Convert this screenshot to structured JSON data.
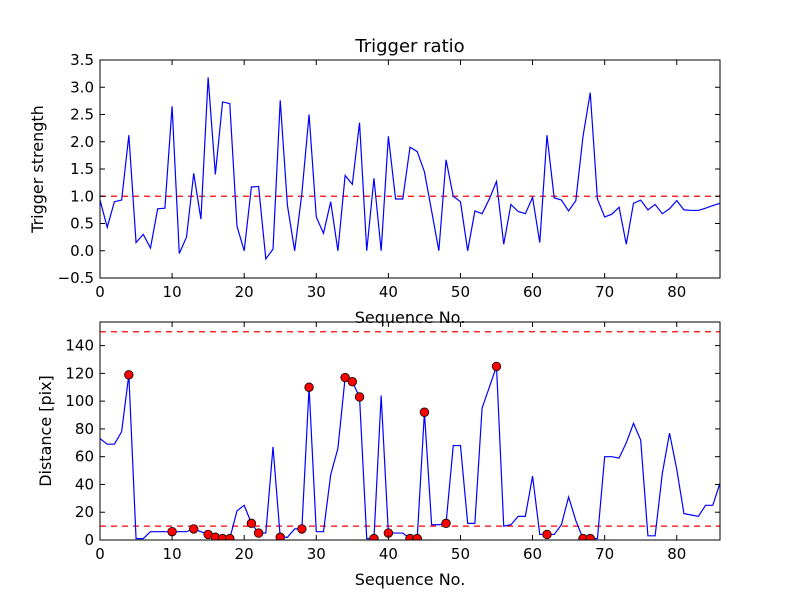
{
  "chart_data": [
    {
      "type": "line",
      "title": "Trigger ratio",
      "xlabel": "Sequence No.",
      "ylabel": "Trigger strength",
      "xlim": [
        0,
        86
      ],
      "ylim": [
        -0.5,
        3.5
      ],
      "xticks": [
        0,
        10,
        20,
        30,
        40,
        50,
        60,
        70,
        80
      ],
      "xtick_labels": [
        "0",
        "10",
        "20",
        "30",
        "40",
        "50",
        "60",
        "70",
        "80"
      ],
      "yticks": [
        -0.5,
        0.0,
        0.5,
        1.0,
        1.5,
        2.0,
        2.5,
        3.0,
        3.5
      ],
      "ytick_labels": [
        "−0.5",
        "0.0",
        "0.5",
        "1.0",
        "1.5",
        "2.0",
        "2.5",
        "3.0",
        "3.5"
      ],
      "series": [
        {
          "name": "trigger strength",
          "color": "#0000ff",
          "x": [
            0,
            1,
            2,
            3,
            4,
            5,
            6,
            7,
            8,
            9,
            10,
            11,
            12,
            13,
            14,
            15,
            16,
            17,
            18,
            19,
            20,
            21,
            22,
            23,
            24,
            25,
            26,
            27,
            28,
            29,
            30,
            31,
            32,
            33,
            34,
            35,
            36,
            37,
            38,
            39,
            40,
            41,
            42,
            43,
            44,
            45,
            46,
            47,
            48,
            49,
            50,
            51,
            52,
            53,
            54,
            55,
            56,
            57,
            58,
            59,
            60,
            61,
            62,
            63,
            64,
            65,
            66,
            67,
            68,
            69,
            70,
            71,
            72,
            73,
            74,
            75,
            76,
            77,
            78,
            79,
            80,
            81,
            82,
            83,
            84,
            85,
            86
          ],
          "values": [
            0.93,
            0.43,
            0.9,
            0.93,
            2.12,
            0.15,
            0.3,
            0.05,
            0.77,
            0.78,
            2.65,
            -0.05,
            0.25,
            1.42,
            0.58,
            3.18,
            1.4,
            2.73,
            2.7,
            0.45,
            0.0,
            1.17,
            1.18,
            -0.15,
            0.03,
            2.76,
            0.83,
            0.0,
            1.05,
            2.5,
            0.62,
            0.32,
            0.9,
            0.0,
            1.38,
            1.22,
            2.35,
            0.0,
            1.33,
            0.0,
            2.1,
            0.95,
            0.95,
            1.9,
            1.82,
            1.45,
            0.73,
            0.0,
            1.67,
            1.0,
            0.9,
            0.0,
            0.73,
            0.68,
            0.95,
            1.27,
            0.12,
            0.85,
            0.72,
            0.68,
            0.98,
            0.15,
            2.12,
            0.97,
            0.93,
            0.73,
            0.92,
            2.1,
            2.9,
            0.95,
            0.62,
            0.67,
            0.8,
            0.12,
            0.87,
            0.93,
            0.75,
            0.85,
            0.68,
            0.77,
            0.92,
            0.75,
            0.74,
            0.74,
            0.78,
            0.83,
            0.87
          ]
        }
      ],
      "threshold_lines": [
        {
          "y": 1.0,
          "color": "#ff0000",
          "style": "dashed"
        }
      ]
    },
    {
      "type": "line",
      "title": "",
      "xlabel": "Sequence No.",
      "ylabel": "Distance [pix]",
      "xlim": [
        0,
        86
      ],
      "ylim": [
        0,
        157
      ],
      "xticks": [
        0,
        10,
        20,
        30,
        40,
        50,
        60,
        70,
        80
      ],
      "xtick_labels": [
        "0",
        "10",
        "20",
        "30",
        "40",
        "50",
        "60",
        "70",
        "80"
      ],
      "yticks": [
        0,
        20,
        40,
        60,
        80,
        100,
        120,
        140
      ],
      "ytick_labels": [
        "0",
        "20",
        "40",
        "60",
        "80",
        "100",
        "120",
        "140"
      ],
      "series": [
        {
          "name": "distance",
          "color": "#0000ff",
          "x": [
            0,
            1,
            2,
            3,
            4,
            5,
            6,
            7,
            8,
            9,
            10,
            11,
            12,
            13,
            14,
            15,
            16,
            17,
            18,
            19,
            20,
            21,
            22,
            23,
            24,
            25,
            26,
            27,
            28,
            29,
            30,
            31,
            32,
            33,
            34,
            35,
            36,
            37,
            38,
            39,
            40,
            41,
            42,
            43,
            44,
            45,
            46,
            47,
            48,
            49,
            50,
            51,
            52,
            53,
            54,
            55,
            56,
            57,
            58,
            59,
            60,
            61,
            62,
            63,
            64,
            65,
            66,
            67,
            68,
            69,
            70,
            71,
            72,
            73,
            74,
            75,
            76,
            77,
            78,
            79,
            80,
            81,
            82,
            83,
            84,
            85,
            86
          ],
          "values": [
            73,
            69,
            69,
            78,
            119,
            1,
            1,
            6,
            6,
            6,
            6,
            6,
            6,
            8,
            6,
            4,
            2,
            1,
            1,
            21,
            25,
            12,
            5,
            5,
            67,
            2,
            2,
            8,
            8,
            110,
            6,
            6,
            47,
            66,
            117,
            114,
            103,
            1,
            1,
            104,
            5,
            5,
            5,
            1,
            1,
            92,
            11,
            11,
            12,
            68,
            68,
            12,
            12,
            95,
            110,
            125,
            10,
            11,
            17,
            17,
            46,
            4,
            4,
            4,
            11,
            31,
            14,
            1,
            1,
            1,
            60,
            60,
            59,
            70,
            84,
            72,
            3,
            3,
            48,
            77,
            51,
            19,
            18,
            17,
            25,
            25,
            41
          ]
        },
        {
          "name": "triggered points",
          "color": "#ff0000",
          "marker": "circle",
          "x": [
            4,
            10,
            13,
            15,
            16,
            17,
            18,
            21,
            22,
            25,
            28,
            29,
            34,
            35,
            36,
            38,
            40,
            43,
            44,
            45,
            48,
            55,
            62,
            67,
            68
          ],
          "values": [
            119,
            6,
            8,
            4,
            2,
            1,
            1,
            12,
            5,
            2,
            8,
            110,
            117,
            114,
            103,
            1,
            5,
            1,
            1,
            92,
            12,
            125,
            4,
            1,
            1
          ]
        }
      ],
      "threshold_lines": [
        {
          "y": 10,
          "color": "#ff0000",
          "style": "dashed"
        },
        {
          "y": 150,
          "color": "#ff0000",
          "style": "dashed"
        }
      ]
    }
  ]
}
